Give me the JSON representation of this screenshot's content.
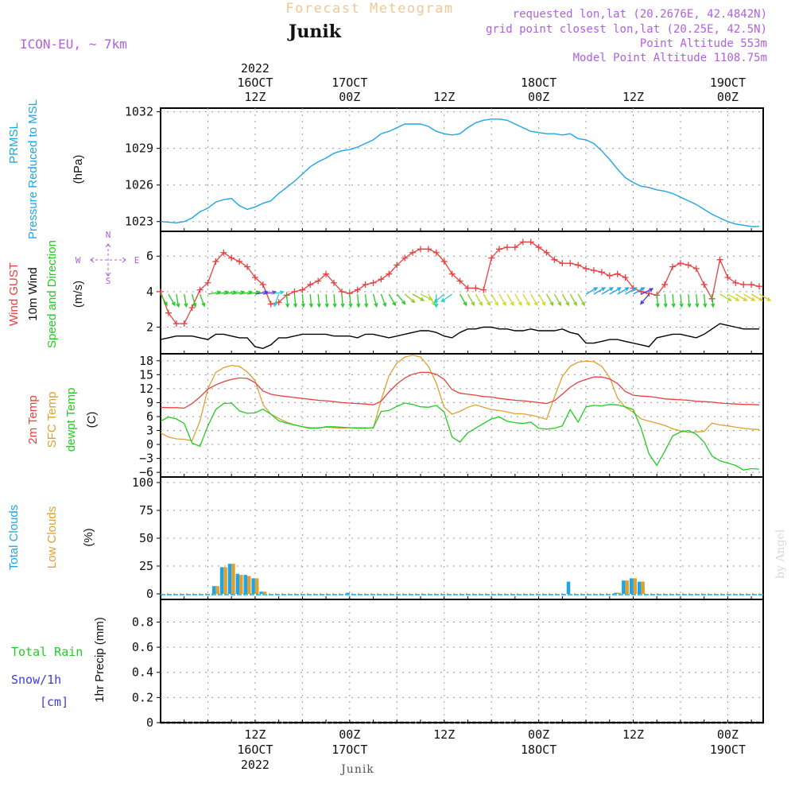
{
  "header": {
    "title_top": "Forecast Meteogram",
    "location": "Junik",
    "model": "ICON-EU, ~ 7km",
    "requested": "requested lon,lat (20.2676E, 42.4842N)",
    "grid_point": "grid point closest lon,lat (20.25E, 42.5N)",
    "point_altitude": "Point Altitude 553m",
    "model_altitude": "Model Point Altitude 1108.75m",
    "credit": "by Angel",
    "footer_location": "Junik"
  },
  "time_axis": {
    "top_labels": [
      {
        "h": 12,
        "lines": [
          "2022",
          "16OCT",
          "12Z"
        ]
      },
      {
        "h": 24,
        "lines": [
          "17OCT",
          "00Z"
        ]
      },
      {
        "h": 36,
        "lines": [
          "12Z"
        ]
      },
      {
        "h": 48,
        "lines": [
          "18OCT",
          "00Z"
        ]
      },
      {
        "h": 60,
        "lines": [
          "12Z"
        ]
      },
      {
        "h": 72,
        "lines": [
          "19OCT",
          "00Z"
        ]
      }
    ],
    "bottom_labels": [
      {
        "h": 12,
        "lines": [
          "12Z",
          "16OCT",
          "2022"
        ]
      },
      {
        "h": 24,
        "lines": [
          "00Z",
          "17OCT"
        ]
      },
      {
        "h": 36,
        "lines": [
          "12Z"
        ]
      },
      {
        "h": 48,
        "lines": [
          "00Z",
          "18OCT"
        ]
      },
      {
        "h": 60,
        "lines": [
          "12Z"
        ]
      },
      {
        "h": 72,
        "lines": [
          "00Z",
          "19OCT"
        ]
      }
    ]
  },
  "colors": {
    "pressure": "#1ea5e6",
    "gust": "#e84040",
    "wind": "#000000",
    "direction": "#22cc22",
    "temp": "#e84040",
    "sfc": "#e0a030",
    "dewpt": "#22cc22",
    "total_clouds": "#1ea5e6",
    "low_clouds": "#e0a030",
    "rain": "#22cc22",
    "snow": "#3a3ae8",
    "purple": "#b060e0",
    "title_faded": "#f0c890"
  },
  "chart_data": [
    {
      "type": "line",
      "panel": "pressure",
      "ylabel_lines": [
        "PRMSL",
        "Pressure Reduced to MSL",
        "(hPa)"
      ],
      "yticks": [
        1023,
        1026,
        1029,
        1032
      ],
      "ylim": [
        1022.2,
        1032.3
      ],
      "grid": true,
      "x_hours": [
        0,
        2,
        3,
        4,
        5,
        6,
        7,
        8,
        9,
        10,
        11,
        12,
        13,
        14,
        15,
        16,
        17,
        18,
        19,
        20,
        21,
        22,
        23,
        24,
        25,
        26,
        27,
        28,
        29,
        30,
        31,
        32,
        33,
        34,
        35,
        36,
        37,
        38,
        39,
        40,
        41,
        42,
        43,
        44,
        45,
        46,
        47,
        48,
        49,
        50,
        51,
        52,
        53,
        54,
        55,
        56,
        57,
        58,
        59,
        60,
        61,
        62,
        63,
        64,
        65,
        66,
        67,
        68,
        69,
        70,
        71,
        72,
        73,
        74,
        75,
        76
      ],
      "series": [
        {
          "name": "PRMSL",
          "values": [
            1023.0,
            1022.9,
            1023.0,
            1023.3,
            1023.8,
            1024.1,
            1024.6,
            1024.8,
            1024.9,
            1024.3,
            1024.0,
            1024.2,
            1024.5,
            1024.7,
            1025.3,
            1025.8,
            1026.3,
            1026.9,
            1027.5,
            1027.9,
            1028.2,
            1028.6,
            1028.8,
            1028.9,
            1029.1,
            1029.4,
            1029.7,
            1030.2,
            1030.4,
            1030.7,
            1031.0,
            1031.0,
            1031.0,
            1030.8,
            1030.4,
            1030.2,
            1030.1,
            1030.2,
            1030.7,
            1031.1,
            1031.3,
            1031.4,
            1031.4,
            1031.3,
            1031.0,
            1030.7,
            1030.4,
            1030.3,
            1030.2,
            1030.2,
            1030.1,
            1030.2,
            1029.8,
            1029.7,
            1029.4,
            1028.8,
            1028.1,
            1027.3,
            1026.6,
            1026.2,
            1025.9,
            1025.8,
            1025.6,
            1025.5,
            1025.3,
            1025.0,
            1024.7,
            1024.4,
            1024.0,
            1023.6,
            1023.3,
            1023.0,
            1022.8,
            1022.7,
            1022.6,
            1022.6
          ]
        }
      ]
    },
    {
      "type": "line",
      "panel": "wind",
      "ylabel_lines": [
        "Wind GUST",
        "10m Wind",
        "Speed and Direction",
        "(m/s)"
      ],
      "compass": {
        "n": "N",
        "s": "S",
        "w": "W",
        "e": "E"
      },
      "yticks": [
        2,
        4,
        6
      ],
      "ylim": [
        0.5,
        7.4
      ],
      "grid": true,
      "x_hours": [
        0,
        1,
        2,
        3,
        4,
        5,
        6,
        7,
        8,
        9,
        10,
        11,
        12,
        13,
        14,
        15,
        16,
        17,
        18,
        19,
        20,
        21,
        22,
        23,
        24,
        25,
        26,
        27,
        28,
        29,
        30,
        31,
        32,
        33,
        34,
        35,
        36,
        37,
        38,
        39,
        40,
        41,
        42,
        43,
        44,
        45,
        46,
        47,
        48,
        49,
        50,
        51,
        52,
        53,
        54,
        55,
        56,
        57,
        58,
        59,
        60,
        61,
        62,
        63,
        64,
        65,
        66,
        67,
        68,
        69,
        70,
        71,
        72,
        73,
        74,
        75,
        76
      ],
      "series": [
        {
          "name": "Wind GUST",
          "marker": "+",
          "values": [
            4.0,
            2.8,
            2.2,
            2.2,
            3.1,
            4.1,
            4.5,
            5.7,
            6.2,
            5.9,
            5.7,
            5.4,
            4.8,
            4.4,
            3.3,
            3.4,
            3.8,
            4.0,
            4.1,
            4.4,
            4.6,
            5.0,
            4.5,
            4.0,
            3.9,
            4.1,
            4.4,
            4.5,
            4.7,
            5.0,
            5.5,
            5.9,
            6.2,
            6.4,
            6.4,
            6.2,
            5.7,
            5.0,
            4.6,
            4.2,
            4.2,
            4.1,
            5.9,
            6.4,
            6.5,
            6.5,
            6.8,
            6.8,
            6.5,
            6.2,
            5.8,
            5.6,
            5.6,
            5.5,
            5.3,
            5.2,
            5.1,
            4.9,
            5.0,
            4.8,
            4.2,
            4.0,
            3.9,
            3.8,
            4.4,
            5.4,
            5.6,
            5.5,
            5.3,
            4.4,
            3.6,
            5.8,
            4.8,
            4.5,
            4.4,
            4.4,
            4.3
          ]
        },
        {
          "name": "10m Wind",
          "values": [
            1.3,
            1.4,
            1.5,
            1.5,
            1.5,
            1.4,
            1.3,
            1.6,
            1.6,
            1.5,
            1.4,
            1.4,
            0.9,
            0.8,
            1.0,
            1.4,
            1.4,
            1.5,
            1.6,
            1.6,
            1.6,
            1.6,
            1.5,
            1.5,
            1.5,
            1.4,
            1.6,
            1.6,
            1.5,
            1.4,
            1.5,
            1.6,
            1.7,
            1.8,
            1.8,
            1.7,
            1.5,
            1.4,
            1.7,
            1.9,
            1.9,
            2.0,
            2.0,
            1.9,
            1.9,
            1.8,
            1.8,
            1.9,
            1.8,
            1.8,
            1.8,
            1.9,
            1.7,
            1.6,
            1.1,
            1.1,
            1.2,
            1.3,
            1.3,
            1.2,
            1.1,
            1.0,
            0.9,
            1.4,
            1.5,
            1.6,
            1.6,
            1.5,
            1.4,
            1.6,
            1.9,
            2.2,
            2.1,
            2.0,
            1.9,
            1.9,
            1.9
          ]
        },
        {
          "name": "Direction (deg toward)",
          "values": [
            150,
            150,
            170,
            170,
            165,
            160,
            80,
            80,
            80,
            80,
            80,
            80,
            80,
            80,
            80,
            200,
            175,
            175,
            175,
            175,
            175,
            175,
            175,
            175,
            175,
            175,
            175,
            165,
            160,
            150,
            140,
            130,
            120,
            115,
            150,
            180,
            230,
            235,
            150,
            150,
            150,
            150,
            150,
            150,
            150,
            150,
            150,
            150,
            150,
            150,
            150,
            150,
            150,
            150,
            60,
            60,
            60,
            60,
            60,
            60,
            60,
            65,
            220,
            175,
            175,
            175,
            175,
            175,
            175,
            175,
            175,
            120,
            120,
            120,
            120,
            120,
            120
          ]
        }
      ],
      "arrow_colors": [
        "#22cc22",
        "#22cc22",
        "#22cc22",
        "#22cc22",
        "#22cc22",
        "#22cc22",
        "#22cc22",
        "#22cc22",
        "#22cc22",
        "#22cc22",
        "#22cc22",
        "#22cc22",
        "#3a3ae8",
        "#7a30d0",
        "#22cccc",
        "#22cccc",
        "#22cc22",
        "#22cc22",
        "#22cc22",
        "#22cc22",
        "#22cc22",
        "#22cc22",
        "#22cc22",
        "#22cc22",
        "#22cc22",
        "#22cc22",
        "#22cc22",
        "#22cc22",
        "#22cc22",
        "#22cc22",
        "#22cc22",
        "#88cc22",
        "#88cc22",
        "#aadd22",
        "#aadd22",
        "#22cccc",
        "#22cccc",
        "#22cccc",
        "#22cc22",
        "#88cc22",
        "#aadd22",
        "#aadd22",
        "#ccdd22",
        "#ccdd22",
        "#ccdd22",
        "#ccdd22",
        "#ccdd22",
        "#ccdd22",
        "#ccdd22",
        "#88cc22",
        "#88cc22",
        "#88cc22",
        "#88cc22",
        "#88cc22",
        "#1ea5e6",
        "#1ea5e6",
        "#1ea5e6",
        "#1ea5e6",
        "#1ea5e6",
        "#1ea5e6",
        "#1ea5e6",
        "#3a3ae8",
        "#3a3ae8",
        "#22cc22",
        "#22cc22",
        "#22cc22",
        "#22cc22",
        "#22cc22",
        "#22cc22",
        "#22cc22",
        "#22cc22",
        "#aadd22",
        "#ccdd22",
        "#ddcc22",
        "#ddcc22",
        "#ddcc22",
        "#ddcc22"
      ]
    },
    {
      "type": "line",
      "panel": "temperature",
      "ylabel_lines": [
        "2m Temp",
        "SFC Temp",
        "dewpt Temp",
        "(C)"
      ],
      "yticks": [
        -6,
        -3,
        0,
        3,
        6,
        9,
        12,
        15,
        18
      ],
      "ylim": [
        -7,
        19.5
      ],
      "grid": true,
      "x_hours": [
        0,
        1,
        2,
        3,
        4,
        5,
        6,
        7,
        8,
        9,
        10,
        11,
        12,
        13,
        14,
        15,
        16,
        17,
        18,
        19,
        20,
        21,
        22,
        23,
        24,
        25,
        26,
        27,
        28,
        29,
        30,
        31,
        32,
        33,
        34,
        35,
        36,
        37,
        38,
        39,
        40,
        41,
        42,
        43,
        44,
        45,
        46,
        47,
        48,
        49,
        50,
        51,
        52,
        53,
        54,
        55,
        56,
        57,
        58,
        59,
        60,
        61,
        62,
        63,
        64,
        65,
        66,
        67,
        68,
        69,
        70,
        71,
        72,
        73,
        74,
        75,
        76
      ],
      "series": [
        {
          "name": "2m Temp",
          "values": [
            8.0,
            7.9,
            7.9,
            7.8,
            8.8,
            10.2,
            11.9,
            12.8,
            13.5,
            14.0,
            14.3,
            14.2,
            13.3,
            11.5,
            10.8,
            10.5,
            10.3,
            10.1,
            9.9,
            9.7,
            9.5,
            9.4,
            9.2,
            9.0,
            8.9,
            8.8,
            8.7,
            8.5,
            9.3,
            11.3,
            13.0,
            14.3,
            15.1,
            15.5,
            15.5,
            15.1,
            14.0,
            11.8,
            11.0,
            10.8,
            10.6,
            10.3,
            10.2,
            9.9,
            9.7,
            9.5,
            9.4,
            9.2,
            9.0,
            8.8,
            9.4,
            10.8,
            12.3,
            13.4,
            14.0,
            14.5,
            14.5,
            14.1,
            13.1,
            11.4,
            10.6,
            10.4,
            10.3,
            10.1,
            9.8,
            9.7,
            9.6,
            9.5,
            9.3,
            9.2,
            9.1,
            8.9,
            8.8,
            8.7,
            8.6,
            8.6,
            8.5
          ]
        },
        {
          "name": "SFC Temp",
          "values": [
            2.5,
            1.6,
            1.2,
            1.1,
            0.8,
            5.0,
            12.0,
            15.5,
            16.5,
            17.0,
            16.8,
            15.6,
            13.7,
            8.6,
            6.5,
            5.6,
            4.8,
            4.2,
            3.8,
            3.6,
            3.6,
            3.7,
            3.6,
            3.5,
            3.6,
            3.6,
            3.6,
            3.5,
            9.5,
            14.8,
            17.5,
            18.8,
            19.2,
            18.8,
            16.8,
            13.2,
            8.0,
            6.5,
            7.1,
            8.0,
            8.5,
            8.0,
            7.5,
            7.3,
            7.0,
            6.6,
            6.6,
            6.3,
            5.9,
            5.4,
            10.2,
            14.6,
            16.8,
            17.7,
            17.9,
            17.8,
            16.8,
            14.4,
            10.0,
            8.0,
            6.9,
            5.5,
            5.0,
            4.6,
            4.1,
            3.4,
            2.9,
            2.6,
            2.7,
            2.8,
            4.6,
            4.2,
            4.0,
            3.7,
            3.5,
            3.3,
            3.2
          ]
        },
        {
          "name": "dewpt Temp",
          "values": [
            5.0,
            5.9,
            5.5,
            4.5,
            0.3,
            -0.4,
            4.0,
            7.5,
            8.8,
            8.9,
            7.2,
            6.7,
            6.8,
            7.6,
            6.5,
            5.1,
            4.6,
            4.2,
            3.8,
            3.5,
            3.5,
            3.8,
            3.8,
            3.7,
            3.6,
            3.5,
            3.5,
            3.6,
            7.1,
            7.3,
            8.2,
            8.9,
            8.6,
            8.1,
            8.0,
            8.4,
            7.0,
            1.6,
            0.5,
            2.5,
            3.5,
            4.5,
            5.5,
            5.9,
            5.0,
            4.7,
            4.5,
            4.8,
            3.5,
            3.3,
            3.5,
            4.0,
            7.5,
            4.8,
            8.1,
            8.4,
            8.3,
            8.6,
            8.5,
            8.1,
            7.5,
            3.5,
            -2.0,
            -4.5,
            -1.5,
            1.8,
            2.7,
            3.0,
            2.2,
            0.5,
            -2.5,
            -3.5,
            -4.0,
            -4.5,
            -5.5,
            -5.2,
            -5.3
          ]
        }
      ]
    },
    {
      "type": "bar",
      "panel": "clouds",
      "ylabel_lines": [
        "Total Clouds",
        "Low Clouds",
        "(%)"
      ],
      "yticks": [
        0,
        25,
        50,
        75,
        100
      ],
      "ylim": [
        -5,
        105
      ],
      "grid": true,
      "x_hours": [
        7,
        8,
        9,
        10,
        11,
        12,
        13,
        14,
        24,
        52,
        58,
        59,
        60,
        61
      ],
      "series": [
        {
          "name": "Total Clouds",
          "values": [
            7,
            24,
            27,
            18,
            17,
            14,
            2,
            0,
            1,
            11,
            1,
            12,
            14,
            11
          ]
        },
        {
          "name": "Low Clouds",
          "values": [
            7,
            24,
            27,
            17,
            16,
            14,
            2,
            0,
            0,
            0,
            1,
            12,
            14,
            11
          ]
        }
      ]
    },
    {
      "type": "bar",
      "panel": "precip",
      "ylabel_lines": [
        "1hr Precip (mm)"
      ],
      "legend_lines": [
        "Total  Rain",
        "Snow/1h",
        "[cm]"
      ],
      "yticks": [
        0,
        0.2,
        0.4,
        0.6,
        0.8
      ],
      "ylim": [
        0,
        0.98
      ],
      "grid": true,
      "series": [
        {
          "name": "Total Rain",
          "values": []
        },
        {
          "name": "Snow/1h",
          "values": []
        }
      ]
    }
  ]
}
